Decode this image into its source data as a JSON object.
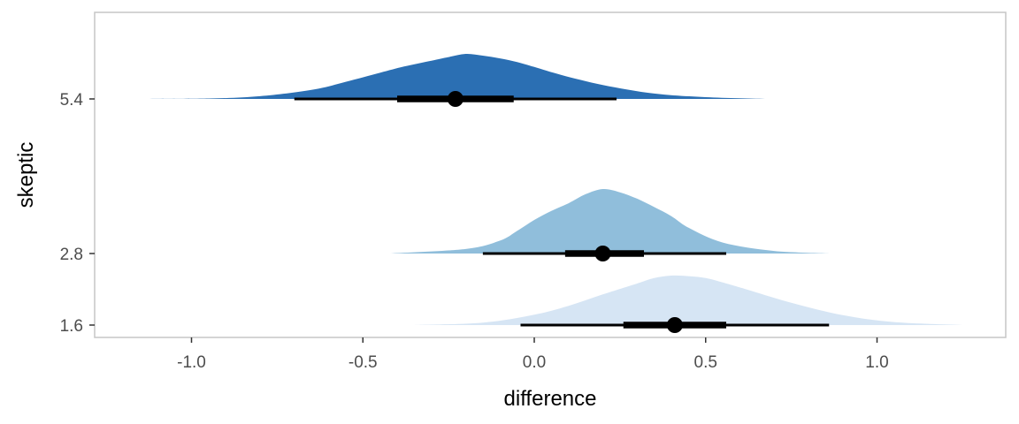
{
  "chart_data": {
    "type": "halfeye",
    "title": "",
    "xlabel": "difference",
    "ylabel": "skeptic",
    "xlim": [
      -1.3,
      1.38
    ],
    "x_ticks": [
      -1.0,
      -0.5,
      0.0,
      0.5,
      1.0
    ],
    "x_tick_labels": [
      "-1.0",
      "-0.5",
      "0.0",
      "0.5",
      "1.0"
    ],
    "y_ticks": [
      1.6,
      2.8,
      5.4
    ],
    "y_tick_labels": [
      "1.6",
      "2.8",
      "5.4"
    ],
    "grid": false,
    "series": [
      {
        "name": "5.4",
        "y": 5.4,
        "color": "#2b6fb3",
        "density_x": [
          -1.18,
          -0.95,
          -0.8,
          -0.65,
          -0.55,
          -0.45,
          -0.38,
          -0.3,
          -0.25,
          -0.2,
          -0.15,
          -0.1,
          -0.05,
          0.0,
          0.08,
          0.2,
          0.35,
          0.5,
          0.68
        ],
        "density_y": [
          0.0,
          0.01,
          0.06,
          0.2,
          0.38,
          0.58,
          0.72,
          0.85,
          0.93,
          1.0,
          0.96,
          0.9,
          0.82,
          0.71,
          0.53,
          0.31,
          0.12,
          0.04,
          0.0
        ],
        "median": -0.23,
        "interval_66": [
          -0.4,
          -0.06
        ],
        "interval_95": [
          -0.7,
          0.24
        ]
      },
      {
        "name": "2.8",
        "y": 2.8,
        "color": "#90bedb",
        "density_x": [
          -0.42,
          -0.2,
          -0.1,
          -0.05,
          0.0,
          0.05,
          0.1,
          0.15,
          0.2,
          0.25,
          0.3,
          0.35,
          0.4,
          0.45,
          0.55,
          0.7,
          0.86
        ],
        "density_y": [
          0.0,
          0.07,
          0.2,
          0.35,
          0.52,
          0.66,
          0.78,
          0.92,
          1.0,
          0.95,
          0.85,
          0.72,
          0.58,
          0.4,
          0.17,
          0.04,
          0.0
        ],
        "median": 0.2,
        "interval_66": [
          0.09,
          0.32
        ],
        "interval_95": [
          -0.15,
          0.56
        ]
      },
      {
        "name": "1.6",
        "y": 1.6,
        "color": "#d6e5f4",
        "density_x": [
          -0.35,
          -0.15,
          0.0,
          0.1,
          0.2,
          0.3,
          0.35,
          0.4,
          0.45,
          0.5,
          0.55,
          0.62,
          0.75,
          0.9,
          1.05,
          1.25
        ],
        "density_y": [
          0.0,
          0.05,
          0.21,
          0.39,
          0.62,
          0.84,
          0.95,
          1.0,
          0.99,
          0.95,
          0.86,
          0.72,
          0.45,
          0.2,
          0.06,
          0.0
        ],
        "median": 0.41,
        "interval_66": [
          0.26,
          0.56
        ],
        "interval_95": [
          -0.04,
          0.86
        ]
      }
    ]
  }
}
